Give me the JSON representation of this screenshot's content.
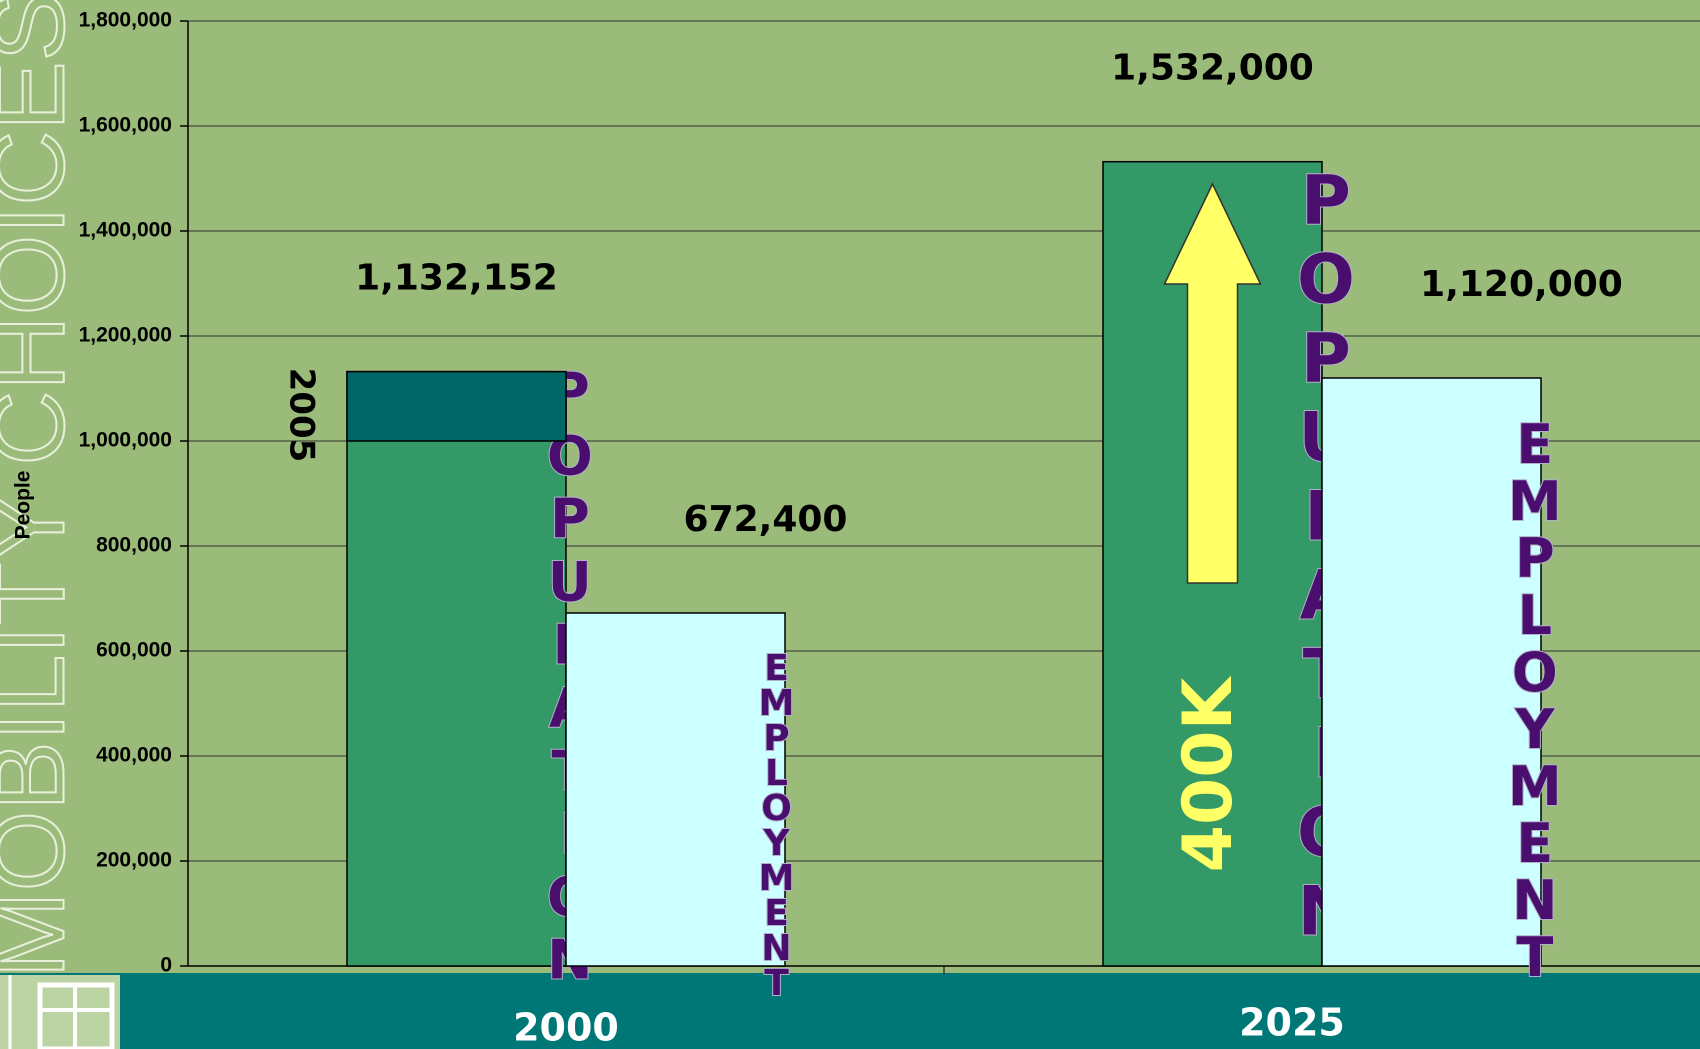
{
  "chart_data": {
    "type": "bar",
    "side_title": "MOBILITY CHOICES",
    "ylabel": "People",
    "categories": [
      "2000",
      "2025"
    ],
    "series": [
      {
        "name": "POPULATION",
        "color": "#339966",
        "values": [
          1132152,
          1532000
        ],
        "value_labels": [
          "1,132,152",
          "1,532,000"
        ]
      },
      {
        "name": "EMPLOYMENT",
        "color": "#ccffff",
        "values": [
          672400,
          1120000
        ],
        "value_labels": [
          "672,400",
          "1,120,000"
        ]
      }
    ],
    "segment_2005": {
      "label": "2005",
      "from": 1000000,
      "color": "#006666"
    },
    "growth_annotation": "400K",
    "ylim": [
      0,
      1800000
    ],
    "yticks": [
      0,
      {
        "value": 200000,
        "label": "200,000"
      },
      {
        "value": 400000,
        "label": "400,000"
      },
      {
        "value": 600000,
        "label": "600,000"
      },
      {
        "value": 800000,
        "label": "800,000"
      },
      {
        "value": 1000000,
        "label": "1,000,000"
      },
      {
        "value": 1200000,
        "label": "1,200,000"
      },
      {
        "value": 1400000,
        "label": "1,400,000"
      },
      {
        "value": 1600000,
        "label": "1,600,000"
      },
      {
        "value": 1800000,
        "label": "1,800,000"
      }
    ],
    "grid": true
  }
}
